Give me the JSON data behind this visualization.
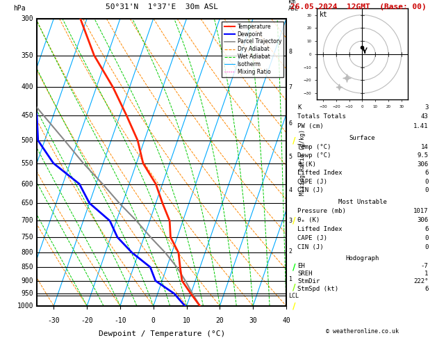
{
  "title_left": "50°31'N  1°37'E  30m ASL",
  "title_right": "26.05.2024  12GMT  (Base: 00)",
  "xlabel": "Dewpoint / Temperature (°C)",
  "pressure_levels": [
    300,
    350,
    400,
    450,
    500,
    550,
    600,
    650,
    700,
    750,
    800,
    850,
    900,
    950,
    1000
  ],
  "pressure_min": 300,
  "pressure_max": 1000,
  "temp_min": -35,
  "temp_max": 40,
  "skew_factor": 30,
  "temp_data": [
    [
      1000,
      14
    ],
    [
      950,
      10
    ],
    [
      900,
      6
    ],
    [
      850,
      4
    ],
    [
      800,
      2
    ],
    [
      750,
      -2
    ],
    [
      700,
      -4
    ],
    [
      650,
      -8
    ],
    [
      600,
      -12
    ],
    [
      550,
      -18
    ],
    [
      500,
      -22
    ],
    [
      450,
      -28
    ],
    [
      400,
      -35
    ],
    [
      350,
      -44
    ],
    [
      300,
      -52
    ]
  ],
  "dewp_data": [
    [
      1000,
      9.5
    ],
    [
      950,
      5
    ],
    [
      900,
      -2
    ],
    [
      850,
      -5
    ],
    [
      800,
      -12
    ],
    [
      750,
      -18
    ],
    [
      700,
      -22
    ],
    [
      650,
      -30
    ],
    [
      600,
      -35
    ],
    [
      550,
      -45
    ],
    [
      500,
      -52
    ],
    [
      450,
      -55
    ],
    [
      400,
      -60
    ],
    [
      350,
      -65
    ],
    [
      300,
      -70
    ]
  ],
  "parcel_data": [
    [
      1000,
      14
    ],
    [
      950,
      10.5
    ],
    [
      900,
      7
    ],
    [
      850,
      3
    ],
    [
      800,
      -2
    ],
    [
      750,
      -8
    ],
    [
      700,
      -14
    ],
    [
      650,
      -21
    ],
    [
      600,
      -28
    ],
    [
      550,
      -36
    ],
    [
      500,
      -44
    ],
    [
      450,
      -53
    ],
    [
      400,
      -63
    ],
    [
      350,
      -73
    ],
    [
      300,
      -85
    ]
  ],
  "isotherm_color": "#00aaff",
  "dry_adiabat_color": "#ff8800",
  "wet_adiabat_color": "#00cc00",
  "mixing_ratio_color": "#ff00bb",
  "temp_color": "#ff2200",
  "dewp_color": "#0000ff",
  "parcel_color": "#888888",
  "mixing_ratios": [
    1,
    2,
    4,
    6,
    8,
    10,
    15,
    20,
    25
  ],
  "km_labels": [
    1,
    2,
    3,
    4,
    5,
    6,
    7,
    8
  ],
  "km_pressures": [
    895,
    795,
    700,
    615,
    535,
    465,
    400,
    345
  ],
  "lcl_pressure": 958,
  "bg_color": "#ffffff",
  "wind_barb_data": [
    {
      "p": 1000,
      "color": "#ffff00",
      "u": 2,
      "v": -3
    },
    {
      "p": 925,
      "color": "#88ff00",
      "u": 3,
      "v": -4
    },
    {
      "p": 850,
      "color": "#00ff00",
      "u": 4,
      "v": -5
    },
    {
      "p": 700,
      "color": "#ffff00",
      "u": 2,
      "v": -3
    },
    {
      "p": 500,
      "color": "#ffff00",
      "u": 1,
      "v": -2
    }
  ],
  "stats": {
    "K": "3",
    "Totals Totals": "43",
    "PW (cm)": "1.41",
    "Surface": {
      "Temp": "14",
      "Dewp": "9.5",
      "theta_e": "306",
      "Lifted Index": "6",
      "CAPE": "0",
      "CIN": "0"
    },
    "Most Unstable": {
      "Pressure": "1017",
      "theta_e": "306",
      "Lifted Index": "6",
      "CAPE": "0",
      "CIN": "0"
    },
    "Hodograph": {
      "EH": "-7",
      "SREH": "1",
      "StmDir": "222°",
      "StmSpd": "6"
    }
  }
}
